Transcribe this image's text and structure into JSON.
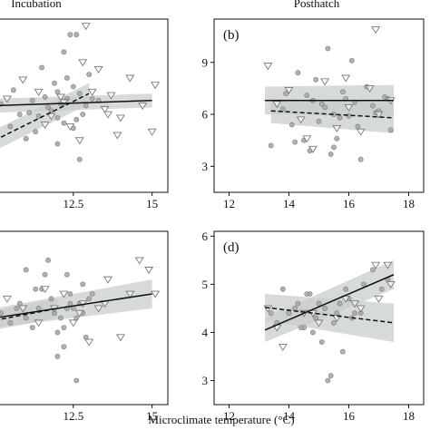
{
  "figure": {
    "column_titles": [
      "Incubation",
      "Posthatch"
    ],
    "xlabel": "Microclimate temperature (°C)"
  },
  "colors": {
    "band": "#c7cccc",
    "circle_fill": "#a9a9a9",
    "circle_stroke": "#7d7d7d",
    "triangle_stroke": "#7a7a7a",
    "line": "#111111"
  },
  "chart_data": [
    {
      "panel": "a",
      "column": "Incubation",
      "type": "scatter",
      "xlim": [
        10.0,
        15.5
      ],
      "ylim": [
        1.5,
        11.5
      ],
      "x_ticks": [
        "12.5",
        "15"
      ],
      "y_ticks": [],
      "label": "",
      "series": [
        {
          "marker": "circle",
          "x": [
            10.2,
            10.5,
            10.8,
            11.0,
            11.2,
            11.4,
            11.6,
            11.8,
            11.9,
            12.0,
            12.1,
            12.2,
            12.3,
            12.4,
            12.5,
            12.6,
            12.6,
            12.7,
            12.9,
            13.0,
            11.3,
            11.7,
            12.0,
            12.3,
            12.8,
            13.3,
            10.6,
            11.5,
            12.2,
            12.7,
            13.1,
            11.1,
            12.0,
            12.5
          ],
          "y": [
            6.6,
            5.3,
            6.0,
            4.6,
            6.8,
            5.9,
            7.0,
            6.2,
            7.8,
            5.8,
            6.6,
            9.6,
            6.9,
            10.6,
            7.6,
            5.7,
            10.6,
            7.2,
            6.5,
            8.3,
            5.0,
            6.4,
            4.3,
            8.1,
            6.0,
            6.8,
            7.4,
            8.7,
            5.5,
            3.4,
            6.9,
            6.1,
            7.3,
            5.2
          ]
        },
        {
          "marker": "triangle",
          "x": [
            10.4,
            10.9,
            11.4,
            11.8,
            12.1,
            12.4,
            12.7,
            12.9,
            13.1,
            13.3,
            13.5,
            13.7,
            14.0,
            14.3,
            14.7,
            15.0,
            15.1,
            12.8,
            13.6,
            13.9,
            11.6,
            12.2
          ],
          "y": [
            6.9,
            8.0,
            7.3,
            5.9,
            7.0,
            5.3,
            4.5,
            11.1,
            7.3,
            8.6,
            6.3,
            7.1,
            5.8,
            8.1,
            6.5,
            5.0,
            7.7,
            9.0,
            6.0,
            4.8,
            5.4,
            6.7
          ]
        }
      ],
      "fit_lines": [
        {
          "style": "solid",
          "x": [
            10.0,
            15.0
          ],
          "y": [
            6.5,
            6.8
          ],
          "ci": [
            [
              6.1,
              6.9
            ],
            [
              6.4,
              7.2
            ]
          ]
        },
        {
          "style": "dashed",
          "x": [
            10.0,
            13.0
          ],
          "y": [
            4.5,
            7.2
          ],
          "ci": [
            [
              3.9,
              5.1
            ],
            [
              6.6,
              7.8
            ]
          ]
        }
      ]
    },
    {
      "panel": "b",
      "column": "Posthatch",
      "type": "scatter",
      "xlim": [
        11.5,
        18.5
      ],
      "ylim": [
        1.5,
        11.5
      ],
      "x_ticks": [
        "12",
        "14",
        "16",
        "18"
      ],
      "y_ticks": [
        "3",
        "6",
        "9"
      ],
      "label": "(b)",
      "series": [
        {
          "marker": "circle",
          "x": [
            13.4,
            13.8,
            14.1,
            14.3,
            14.5,
            14.6,
            14.8,
            15.0,
            15.2,
            15.3,
            15.5,
            15.6,
            15.8,
            16.0,
            16.2,
            16.4,
            16.6,
            16.9,
            17.2,
            17.4,
            14.2,
            14.9,
            15.4,
            15.9,
            16.3,
            16.8,
            13.9,
            14.7,
            15.1,
            15.7,
            16.1,
            17.0,
            17.3,
            15.5
          ],
          "y": [
            4.2,
            6.3,
            5.4,
            8.4,
            4.5,
            7.1,
            6.8,
            5.6,
            6.4,
            9.8,
            6.0,
            4.6,
            7.3,
            5.9,
            6.7,
            3.4,
            7.6,
            6.1,
            7.0,
            5.1,
            4.4,
            8.0,
            3.7,
            6.9,
            5.3,
            6.5,
            7.2,
            3.9,
            6.6,
            5.8,
            9.1,
            6.2,
            6.9,
            4.1
          ]
        },
        {
          "marker": "triangle",
          "x": [
            13.3,
            13.6,
            14.0,
            14.4,
            14.8,
            15.2,
            15.6,
            16.0,
            16.4,
            16.7,
            17.0,
            17.4,
            16.9,
            14.6,
            15.9
          ],
          "y": [
            8.8,
            6.6,
            7.4,
            5.7,
            4.0,
            7.9,
            5.2,
            6.4,
            5.0,
            7.5,
            6.0,
            6.8,
            10.9,
            4.6,
            8.1
          ]
        }
      ],
      "fit_lines": [
        {
          "style": "solid",
          "x": [
            13.2,
            17.5
          ],
          "y": [
            6.8,
            6.8
          ],
          "ci": [
            [
              6.0,
              7.6
            ],
            [
              5.9,
              7.7
            ]
          ]
        },
        {
          "style": "dashed",
          "x": [
            13.4,
            17.5
          ],
          "y": [
            6.2,
            5.8
          ],
          "ci": [
            [
              5.5,
              6.9
            ],
            [
              4.9,
              6.7
            ]
          ]
        }
      ]
    },
    {
      "panel": "c",
      "column": "Incubation",
      "type": "scatter",
      "xlim": [
        10.0,
        15.5
      ],
      "ylim": [
        2.5,
        6.1
      ],
      "x_ticks": [
        "12.5",
        "15"
      ],
      "y_ticks": [],
      "label": "",
      "series": [
        {
          "marker": "circle",
          "x": [
            10.2,
            10.5,
            10.8,
            11.0,
            11.2,
            11.4,
            11.6,
            11.8,
            11.9,
            12.0,
            12.1,
            12.2,
            12.3,
            12.4,
            12.5,
            12.6,
            12.7,
            12.8,
            12.9,
            13.0,
            11.3,
            11.7,
            12.0,
            12.3,
            12.6,
            10.7,
            11.5,
            12.2,
            12.4,
            12.8,
            13.1,
            11.0
          ],
          "y": [
            4.4,
            4.2,
            4.6,
            4.3,
            4.1,
            4.5,
            5.2,
            4.7,
            4.4,
            4.0,
            4.3,
            3.7,
            5.2,
            4.8,
            4.5,
            4.3,
            4.6,
            5.0,
            3.9,
            4.7,
            4.9,
            5.5,
            3.5,
            4.5,
            3.0,
            4.5,
            4.9,
            4.1,
            4.6,
            4.4,
            4.8,
            5.3
          ]
        },
        {
          "marker": "triangle",
          "x": [
            10.4,
            10.9,
            11.4,
            11.9,
            12.2,
            12.5,
            12.8,
            13.0,
            13.3,
            13.6,
            14.0,
            14.3,
            14.6,
            14.9,
            15.1,
            11.6,
            12.7,
            13.5
          ],
          "y": [
            4.7,
            4.5,
            4.2,
            4.5,
            4.8,
            4.2,
            4.6,
            3.8,
            4.5,
            5.1,
            3.9,
            4.8,
            5.5,
            5.3,
            4.8,
            4.9,
            4.4,
            4.6
          ]
        }
      ],
      "fit_lines": [
        {
          "style": "solid",
          "x": [
            10.0,
            15.0
          ],
          "y": [
            4.3,
            4.8
          ],
          "ci": [
            [
              4.1,
              4.5
            ],
            [
              4.5,
              5.1
            ]
          ]
        },
        {
          "style": "dashed",
          "x": [
            10.0,
            12.0
          ],
          "y": [
            4.25,
            4.5
          ],
          "ci": [
            [
              4.05,
              4.45
            ],
            [
              4.3,
              4.7
            ]
          ]
        }
      ]
    },
    {
      "panel": "d",
      "column": "Posthatch",
      "type": "scatter",
      "xlim": [
        11.5,
        18.5
      ],
      "ylim": [
        2.5,
        6.1
      ],
      "x_ticks": [
        "12",
        "14",
        "16",
        "18"
      ],
      "y_ticks": [
        "3",
        "4",
        "5",
        "6"
      ],
      "label": "(d)",
      "series": [
        {
          "marker": "circle",
          "x": [
            13.4,
            13.8,
            14.0,
            14.3,
            14.5,
            14.7,
            14.9,
            15.0,
            15.2,
            15.4,
            15.5,
            15.6,
            15.8,
            16.0,
            16.2,
            16.5,
            16.8,
            17.1,
            14.2,
            14.8,
            15.3,
            15.9,
            16.4,
            17.3,
            13.6,
            14.6,
            15.1,
            15.7,
            16.1,
            14.4
          ],
          "y": [
            4.4,
            4.9,
            4.4,
            4.6,
            4.1,
            4.8,
            4.3,
            4.6,
            4.5,
            3.1,
            4.2,
            4.4,
            3.6,
            4.7,
            4.4,
            5.0,
            5.3,
            4.9,
            4.5,
            4.0,
            3.0,
            4.9,
            4.4,
            5.1,
            4.2,
            4.8,
            3.8,
            4.6,
            4.3,
            4.1
          ]
        },
        {
          "marker": "triangle",
          "x": [
            13.3,
            13.8,
            14.5,
            15.0,
            15.6,
            15.9,
            16.4,
            16.9,
            17.3,
            17.4,
            17.0,
            16.2,
            14.8,
            13.6
          ],
          "y": [
            4.5,
            3.7,
            4.4,
            4.2,
            4.3,
            4.7,
            4.5,
            5.4,
            5.4,
            5.0,
            4.7,
            4.6,
            4.4,
            4.1
          ]
        }
      ],
      "fit_lines": [
        {
          "style": "solid",
          "x": [
            13.2,
            17.5
          ],
          "y": [
            4.05,
            5.2
          ],
          "ci": [
            [
              3.8,
              4.3
            ],
            [
              4.9,
              5.5
            ]
          ]
        },
        {
          "style": "dashed",
          "x": [
            13.2,
            17.5
          ],
          "y": [
            4.52,
            4.2
          ],
          "ci": [
            [
              4.25,
              4.8
            ],
            [
              3.8,
              4.6
            ]
          ]
        }
      ]
    }
  ]
}
